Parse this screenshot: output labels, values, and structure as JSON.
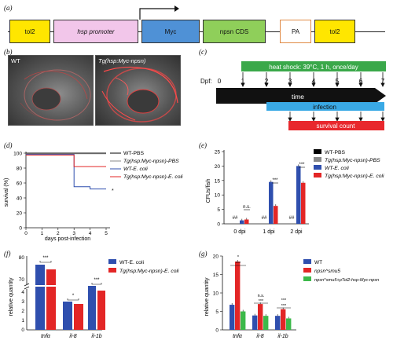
{
  "panel_labels": {
    "a": "(a)",
    "b": "(b)",
    "c": "(c)",
    "d": "(d)",
    "e": "(e)",
    "f": "(f)",
    "g": "(g)"
  },
  "construct": {
    "tol2_left": "tol2",
    "hsp_promoter": "hsp promoter",
    "myc": "Myc",
    "npsn_cds": "npsn CDS",
    "pa": "PA",
    "tol2_right": "tol2",
    "colors": {
      "tol2": "#ffe600",
      "hsp": "#f2c6ea",
      "myc": "#4f91d6",
      "npsn": "#8fcf5a",
      "pa": "#ffffff"
    }
  },
  "images": {
    "wt_label": "WT",
    "tg_label": "Tg(hsp:Myc-npsn)"
  },
  "timeline": {
    "dpf_label": "Dpf:",
    "ticks": [
      "0",
      "1",
      "2",
      "3",
      "4",
      "5",
      "6",
      "7"
    ],
    "heat_shock": "heat shock: 39°C, 1 h, once/day",
    "time": "time",
    "infection": "infection",
    "survival_count": "survival count",
    "colors": {
      "heat": "#3aa84a",
      "infection": "#3aa9e5",
      "survival": "#e8282d",
      "time": "#111111"
    }
  },
  "panel_d": {
    "ylabel": "survival (%)",
    "xlabel": "days post-infection",
    "yticks": [
      "0",
      "20",
      "40",
      "60",
      "80",
      "100"
    ],
    "xticks": [
      "0",
      "1",
      "2",
      "3",
      "4",
      "5"
    ],
    "legend": [
      "WT-PBS",
      "Tg(hsp:Myc-npsn)-PBS",
      "WT-E. coli",
      "Tg(hsp:Myc-npsn)-E. coli"
    ],
    "star": "*"
  },
  "panel_e": {
    "ylabel": "CFUs/fish",
    "yticks": [
      "0",
      "5",
      "10",
      "15",
      "20",
      "25"
    ],
    "categories": [
      "0 dpi",
      "1 dpi",
      "2 dpi"
    ],
    "legend": [
      "WT-PBS",
      "Tg(hsp:Myc-npsn)-PBS",
      "WT-E. coli",
      "Tg(hsp:Myc-npsn)-E. coli"
    ],
    "sig": {
      "hash": "##",
      "ns": "n.s.",
      "star3": "***"
    }
  },
  "panel_f": {
    "ylabel": "relative quantity",
    "yticks_top": [
      "70",
      "80"
    ],
    "yticks_bottom": [
      "0",
      "1",
      "2",
      "3",
      "4"
    ],
    "categories": [
      "tnfα",
      "il-8",
      "il-1b"
    ],
    "legend": [
      "WT-E. coli",
      "Tg(hsp:Myc-npsn)-E. coli"
    ],
    "sig": {
      "s3": "***",
      "s1": "*"
    }
  },
  "panel_g": {
    "ylabel": "relative quantity",
    "yticks": [
      "0",
      "5",
      "10",
      "15",
      "20"
    ],
    "categories": [
      "tnfα",
      "il-8",
      "il-1b"
    ],
    "legend": [
      "WT",
      "npsn^smu5",
      "npsn^smu5+pTol2-hsp-Myc-npsn"
    ],
    "sig": {
      "s1": "*",
      "s3": "***",
      "ns": "n.s."
    }
  },
  "chart_data": [
    {
      "type": "line",
      "title": "",
      "xlabel": "days post-infection",
      "ylabel": "survival (%)",
      "ylim": [
        0,
        100
      ],
      "xlim": [
        0,
        5
      ],
      "series": [
        {
          "name": "WT-PBS",
          "x": [
            0,
            3,
            3,
            5
          ],
          "y": [
            100,
            100,
            100,
            100
          ],
          "color": "#000000"
        },
        {
          "name": "Tg(hsp:Myc-npsn)-PBS",
          "x": [
            0,
            3,
            3,
            5
          ],
          "y": [
            100,
            100,
            100,
            100
          ],
          "color": "#888888"
        },
        {
          "name": "WT-E. coli",
          "x": [
            0,
            3,
            3,
            4,
            4,
            5
          ],
          "y": [
            100,
            100,
            55,
            55,
            52,
            52
          ],
          "color": "#2f4fae"
        },
        {
          "name": "Tg(hsp:Myc-npsn)-E. coli",
          "x": [
            0,
            3,
            3,
            5
          ],
          "y": [
            100,
            100,
            82,
            82
          ],
          "color": "#e32626"
        }
      ]
    },
    {
      "type": "bar",
      "xlabel": "",
      "ylabel": "CFUs/fish",
      "ylim": [
        0,
        25
      ],
      "categories": [
        "0 dpi",
        "1 dpi",
        "2 dpi"
      ],
      "series": [
        {
          "name": "WT-PBS",
          "values": [
            0,
            0,
            0
          ],
          "color": "#000000"
        },
        {
          "name": "Tg(hsp:Myc-npsn)-PBS",
          "values": [
            0,
            0,
            0
          ],
          "color": "#888888"
        },
        {
          "name": "WT-E. coli",
          "values": [
            1.2,
            14.5,
            20
          ],
          "color": "#2f4fae"
        },
        {
          "name": "Tg(hsp:Myc-npsn)-E. coli",
          "values": [
            1.5,
            6.2,
            14.2
          ],
          "color": "#e32626"
        }
      ]
    },
    {
      "type": "bar",
      "xlabel": "",
      "ylabel": "relative quantity",
      "categories": [
        "tnfα",
        "il-8",
        "il-1b"
      ],
      "series": [
        {
          "name": "WT-E. coli",
          "values": [
            75,
            3.0,
            4.9
          ],
          "color": "#2f4fae"
        },
        {
          "name": "Tg(hsp:Myc-npsn)-E. coli",
          "values": [
            73,
            2.75,
            4.5
          ],
          "color": "#e32626"
        }
      ]
    },
    {
      "type": "bar",
      "xlabel": "",
      "ylabel": "relative quantity",
      "ylim": [
        0,
        20
      ],
      "categories": [
        "tnfα",
        "il-8",
        "il-1b"
      ],
      "series": [
        {
          "name": "WT",
          "values": [
            6.8,
            3.9,
            3.8
          ],
          "color": "#2f4fae"
        },
        {
          "name": "npsn^smu5",
          "values": [
            18.5,
            7.0,
            5.6
          ],
          "color": "#e32626"
        },
        {
          "name": "npsn^smu5+pTol2-hsp-Myc-npsn",
          "values": [
            5.0,
            3.8,
            3.1
          ],
          "color": "#3cb94a"
        }
      ]
    }
  ]
}
